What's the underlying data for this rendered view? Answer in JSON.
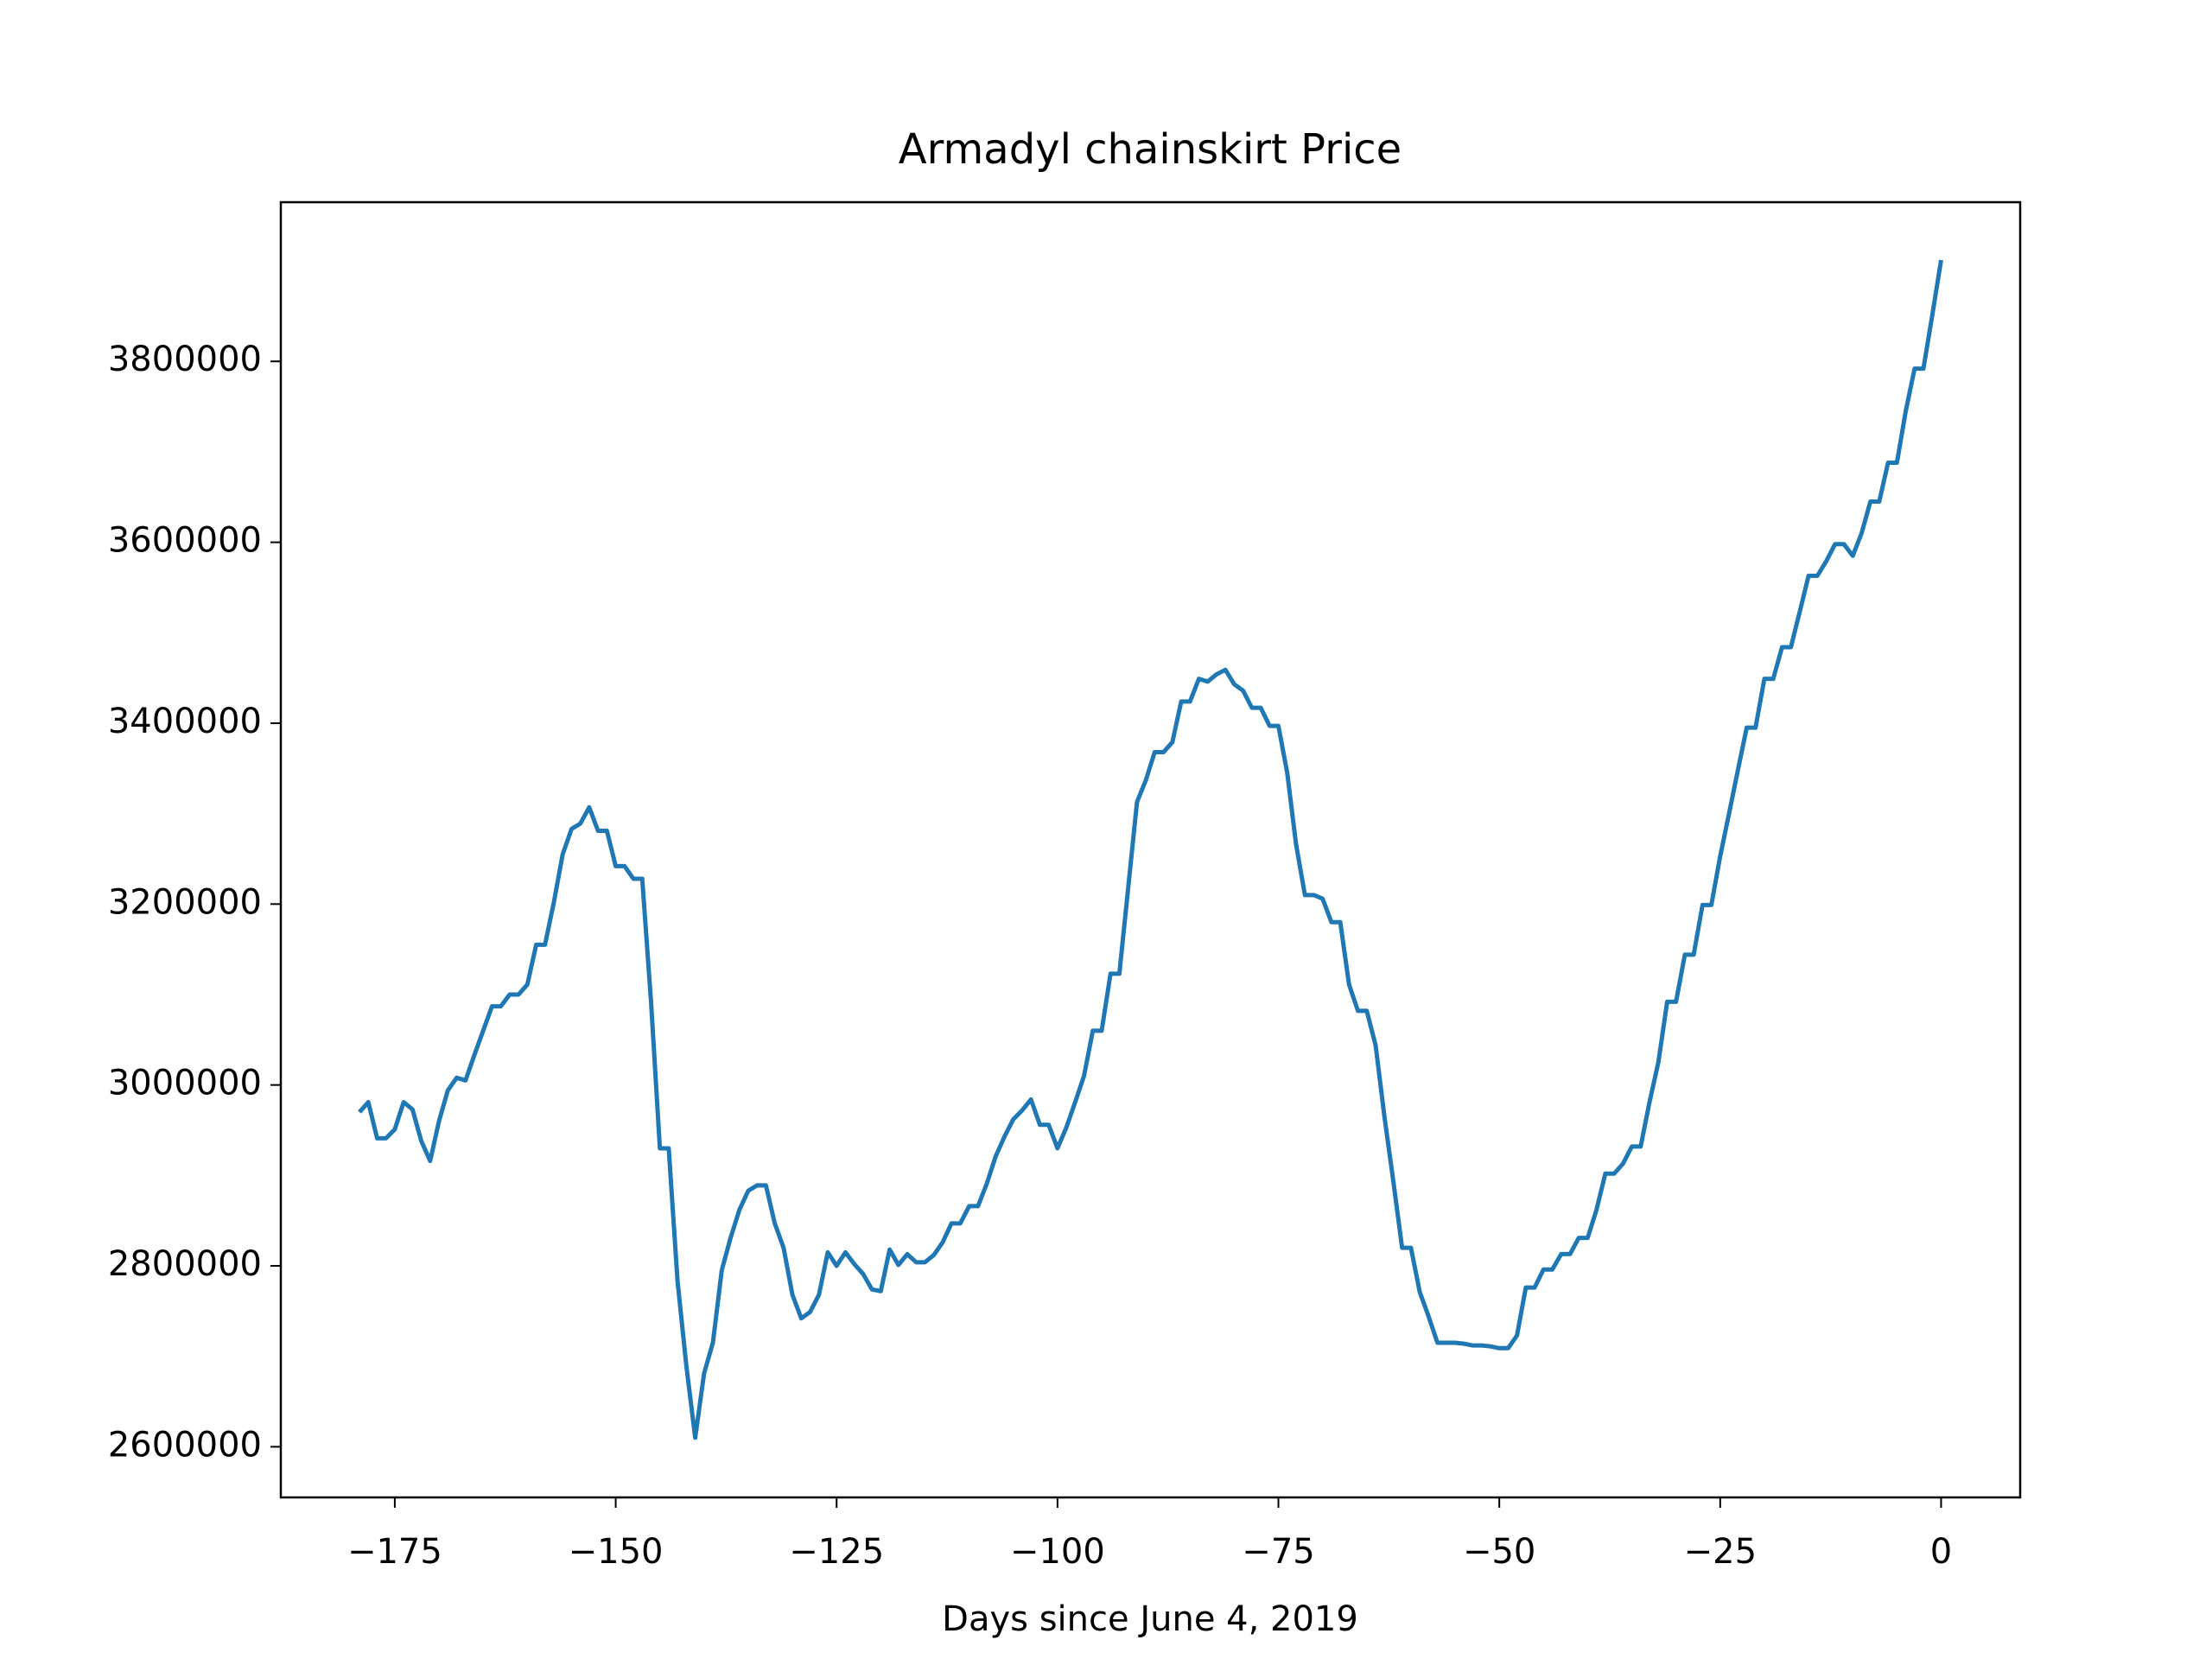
{
  "chart_data": {
    "type": "line",
    "title": "Armadyl chainskirt Price",
    "xlabel": "Days since June 4, 2019",
    "x": [
      -179,
      -178,
      -177,
      -176,
      -175,
      -174,
      -173,
      -172,
      -171,
      -170,
      -169,
      -168,
      -167,
      -166,
      -165,
      -164,
      -163,
      -162,
      -161,
      -160,
      -159,
      -158,
      -157,
      -156,
      -155,
      -154,
      -153,
      -152,
      -151,
      -150,
      -149,
      -148,
      -147,
      -146,
      -145,
      -144,
      -143,
      -142,
      -141,
      -140,
      -139,
      -138,
      -137,
      -136,
      -135,
      -134,
      -133,
      -132,
      -131,
      -130,
      -129,
      -128,
      -127,
      -126,
      -125,
      -124,
      -123,
      -122,
      -121,
      -120,
      -119,
      -118,
      -117,
      -116,
      -115,
      -114,
      -113,
      -112,
      -111,
      -110,
      -109,
      -108,
      -107,
      -106,
      -105,
      -104,
      -103,
      -102,
      -101,
      -100,
      -99,
      -98,
      -97,
      -96,
      -95,
      -94,
      -93,
      -92,
      -91,
      -90,
      -89,
      -88,
      -87,
      -86,
      -85,
      -84,
      -83,
      -82,
      -81,
      -80,
      -79,
      -78,
      -77,
      -76,
      -75,
      -74,
      -73,
      -72,
      -71,
      -70,
      -69,
      -68,
      -67,
      -66,
      -65,
      -64,
      -63,
      -62,
      -61,
      -60,
      -59,
      -58,
      -57,
      -56,
      -55,
      -54,
      -53,
      -52,
      -51,
      -50,
      -49,
      -48,
      -47,
      -46,
      -45,
      -44,
      -43,
      -42,
      -41,
      -40,
      -39,
      -38,
      -37,
      -36,
      -35,
      -34,
      -33,
      -32,
      -31,
      -30,
      -29,
      -28,
      -27,
      -26,
      -25,
      -24,
      -23,
      -22,
      -21,
      -20,
      -19,
      -18,
      -17,
      -16,
      -15,
      -14,
      -13,
      -12,
      -11,
      -10,
      -9,
      -8,
      -7,
      -6,
      -5,
      -4,
      -3,
      -2,
      -1,
      0
    ],
    "series": [
      {
        "color": "#1f77b4",
        "values": [
          2970000,
          2981000,
          2941000,
          2941000,
          2951000,
          2981000,
          2973000,
          2938000,
          2916000,
          2960000,
          2994000,
          3008000,
          3005000,
          3033000,
          3060000,
          3087000,
          3087000,
          3100000,
          3100000,
          3111000,
          3155000,
          3155000,
          3202000,
          3255000,
          3283000,
          3289000,
          3307000,
          3281000,
          3281000,
          3242000,
          3242000,
          3228000,
          3228000,
          3092000,
          2930000,
          2930000,
          2783000,
          2689000,
          2610000,
          2681000,
          2715000,
          2795000,
          2831000,
          2862000,
          2883000,
          2889000,
          2889000,
          2847000,
          2820000,
          2768000,
          2742000,
          2749000,
          2768000,
          2815000,
          2800000,
          2815000,
          2802000,
          2791000,
          2774000,
          2772000,
          2818000,
          2801000,
          2813000,
          2804000,
          2804000,
          2812000,
          2826000,
          2847000,
          2847000,
          2866000,
          2866000,
          2891000,
          2921000,
          2943000,
          2962000,
          2972000,
          2984000,
          2956000,
          2956000,
          2930000,
          2953000,
          2981000,
          3010000,
          3060000,
          3060000,
          3123000,
          3123000,
          3218000,
          3313000,
          3337000,
          3368000,
          3368000,
          3379000,
          3424000,
          3424000,
          3449000,
          3446000,
          3454000,
          3459000,
          3443000,
          3436000,
          3417000,
          3417000,
          3397000,
          3397000,
          3345000,
          3266000,
          3210000,
          3210000,
          3206000,
          3180000,
          3180000,
          3111000,
          3082000,
          3082000,
          3044000,
          2965000,
          2894000,
          2820000,
          2820000,
          2771000,
          2744000,
          2715000,
          2715000,
          2715000,
          2714000,
          2712000,
          2712000,
          2711000,
          2709000,
          2709000,
          2723000,
          2776000,
          2776000,
          2796000,
          2796000,
          2813000,
          2813000,
          2831000,
          2831000,
          2862000,
          2902000,
          2902000,
          2913000,
          2932000,
          2932000,
          2981000,
          3025000,
          3092000,
          3092000,
          3144000,
          3144000,
          3199000,
          3199000,
          3253000,
          3300000,
          3348000,
          3395000,
          3395000,
          3449000,
          3449000,
          3484000,
          3484000,
          3523000,
          3563000,
          3563000,
          3579000,
          3598000,
          3598000,
          3585000,
          3610000,
          3645000,
          3645000,
          3688000,
          3688000,
          3745000,
          3792000,
          3792000,
          3851000,
          3912000
        ]
      }
    ],
    "xlim": [
      -187.9,
      8.95
    ],
    "ylim": [
      2544000,
      3976000
    ],
    "xticks": [
      {
        "value": -175,
        "label": "−175"
      },
      {
        "value": -150,
        "label": "−150"
      },
      {
        "value": -125,
        "label": "−125"
      },
      {
        "value": -100,
        "label": "−100"
      },
      {
        "value": -75,
        "label": "−75"
      },
      {
        "value": -50,
        "label": "−50"
      },
      {
        "value": -25,
        "label": "−25"
      },
      0
    ],
    "yticks": [
      2600000,
      2800000,
      3000000,
      3200000,
      3400000,
      3600000,
      3800000
    ]
  }
}
